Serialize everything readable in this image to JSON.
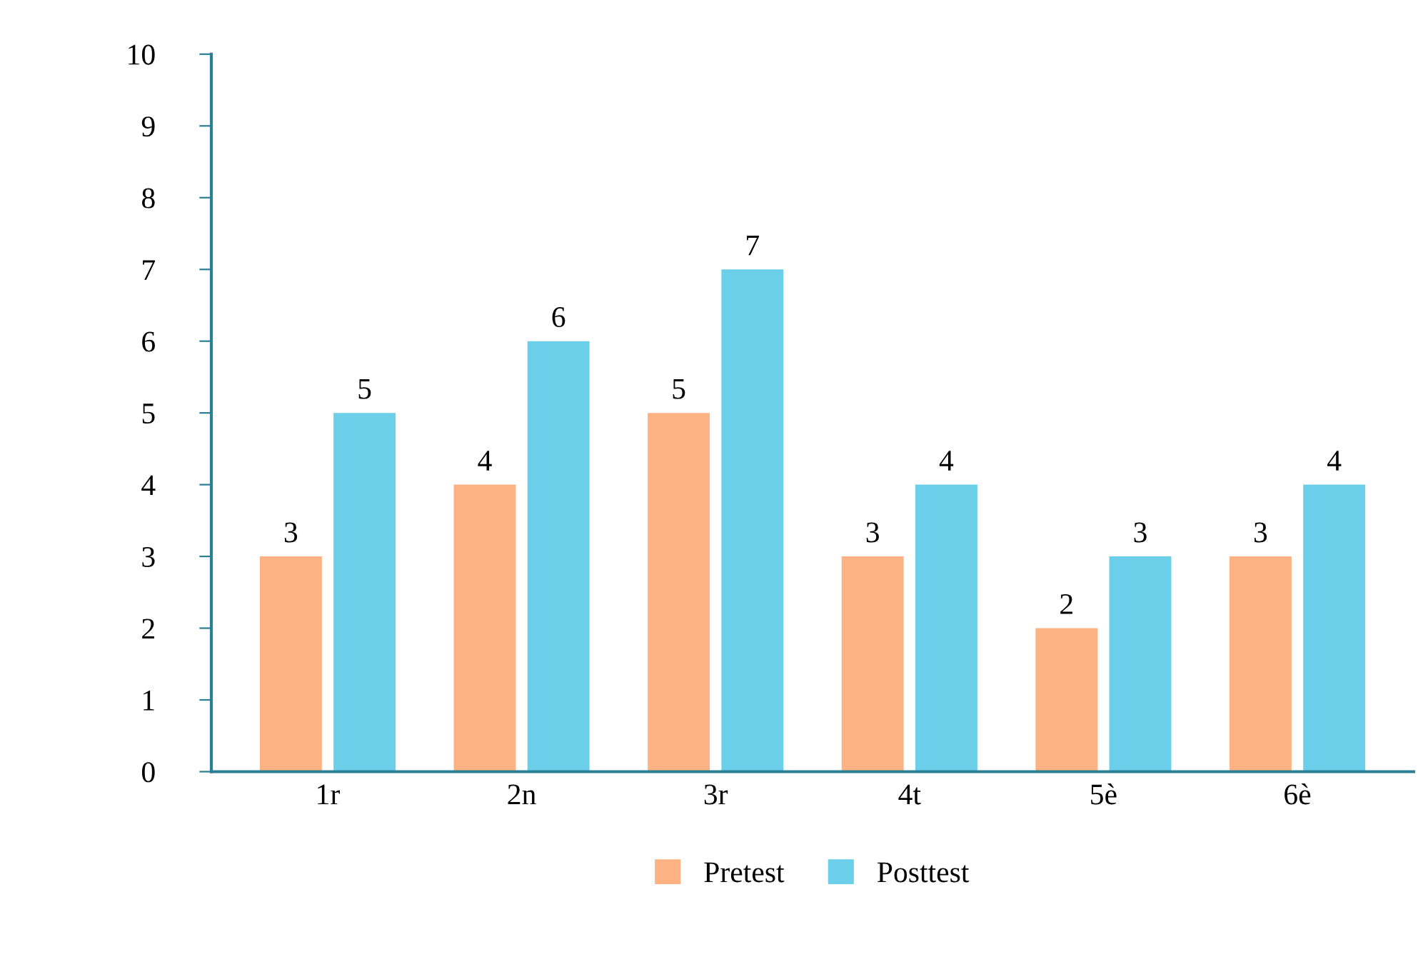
{
  "chart_data": {
    "type": "bar",
    "categories": [
      "1r",
      "2n",
      "3r",
      "4t",
      "5è",
      "6è"
    ],
    "series": [
      {
        "name": "Pretest",
        "color": "#fdb283",
        "values": [
          3,
          4,
          5,
          3,
          2,
          3
        ]
      },
      {
        "name": "Posttest",
        "color": "#6ccfea",
        "values": [
          5,
          6,
          7,
          4,
          3,
          4
        ]
      }
    ],
    "ylim": [
      0,
      10
    ],
    "yticks": [
      0,
      1,
      2,
      3,
      4,
      5,
      6,
      7,
      8,
      9,
      10
    ],
    "data_labels": true,
    "grid": false,
    "legend": "bottom"
  }
}
